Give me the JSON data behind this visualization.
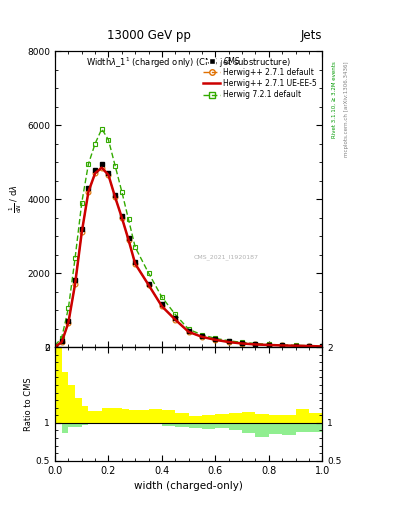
{
  "title_top": "13000 GeV pp",
  "title_right": "Jets",
  "xlabel": "width (charged-only)",
  "ylabel_ratio": "Ratio to CMS",
  "xlim": [
    0,
    1
  ],
  "ylim_main": [
    0,
    8000
  ],
  "ylim_ratio": [
    0.5,
    2
  ],
  "cms_x": [
    0.0,
    0.025,
    0.05,
    0.075,
    0.1,
    0.125,
    0.15,
    0.175,
    0.2,
    0.225,
    0.25,
    0.275,
    0.3,
    0.35,
    0.4,
    0.45,
    0.5,
    0.55,
    0.6,
    0.65,
    0.7,
    0.75,
    0.8,
    0.85,
    0.9,
    0.95,
    1.0
  ],
  "cms_y": [
    5,
    150,
    700,
    1800,
    3200,
    4300,
    4800,
    4950,
    4700,
    4100,
    3550,
    2950,
    2300,
    1700,
    1150,
    780,
    440,
    300,
    210,
    150,
    110,
    85,
    65,
    50,
    40,
    32,
    15
  ],
  "hw271_y": [
    5,
    130,
    660,
    1700,
    3100,
    4200,
    4700,
    4850,
    4650,
    4050,
    3500,
    2900,
    2250,
    1680,
    1100,
    740,
    410,
    275,
    195,
    135,
    95,
    70,
    55,
    42,
    35,
    28,
    14
  ],
  "hw271ue_y": [
    5,
    130,
    660,
    1700,
    3100,
    4200,
    4700,
    4850,
    4650,
    4050,
    3500,
    2900,
    2250,
    1680,
    1100,
    740,
    410,
    275,
    195,
    135,
    95,
    70,
    55,
    42,
    35,
    28,
    14
  ],
  "hw721_y": [
    40,
    250,
    1050,
    2400,
    3900,
    4950,
    5500,
    5900,
    5600,
    4900,
    4200,
    3450,
    2700,
    2000,
    1350,
    880,
    480,
    330,
    235,
    170,
    125,
    95,
    72,
    55,
    47,
    36,
    18
  ],
  "ratio_step_x": [
    0.0,
    0.025,
    0.05,
    0.075,
    0.1,
    0.125,
    0.15,
    0.175,
    0.2,
    0.225,
    0.25,
    0.275,
    0.3,
    0.35,
    0.4,
    0.45,
    0.5,
    0.55,
    0.6,
    0.65,
    0.7,
    0.75,
    0.8,
    0.85,
    0.9,
    0.95,
    1.0
  ],
  "ratio_hw271_y": [
    1.0,
    0.87,
    0.94,
    0.94,
    0.97,
    0.98,
    0.98,
    0.98,
    0.99,
    0.99,
    0.99,
    0.98,
    0.98,
    0.99,
    0.96,
    0.95,
    0.93,
    0.92,
    0.93,
    0.9,
    0.86,
    0.82,
    0.85,
    0.84,
    0.88,
    0.88,
    0.93
  ],
  "ratio_hw721_y": [
    8.0,
    1.67,
    1.5,
    1.33,
    1.22,
    1.15,
    1.15,
    1.19,
    1.19,
    1.2,
    1.18,
    1.17,
    1.17,
    1.18,
    1.17,
    1.13,
    1.09,
    1.1,
    1.12,
    1.13,
    1.14,
    1.12,
    1.11,
    1.1,
    1.18,
    1.13,
    1.2
  ],
  "bg_color": "#ffffff",
  "cms_color": "#000000",
  "hw271_color": "#e07000",
  "hw271ue_color": "#cc0000",
  "hw721_color": "#33aa00",
  "right_label1": "Rivet 3.1.10, ≥ 3.2M events",
  "right_label2": "mcplots.cern.ch [arXiv:1306.3436]",
  "watermark": "CMS_2021_I1920187",
  "yticks_main": [
    0,
    2000,
    4000,
    6000,
    8000
  ],
  "ytick_labels_main": [
    "0",
    "2000",
    "4000",
    "6000",
    "8000"
  ]
}
